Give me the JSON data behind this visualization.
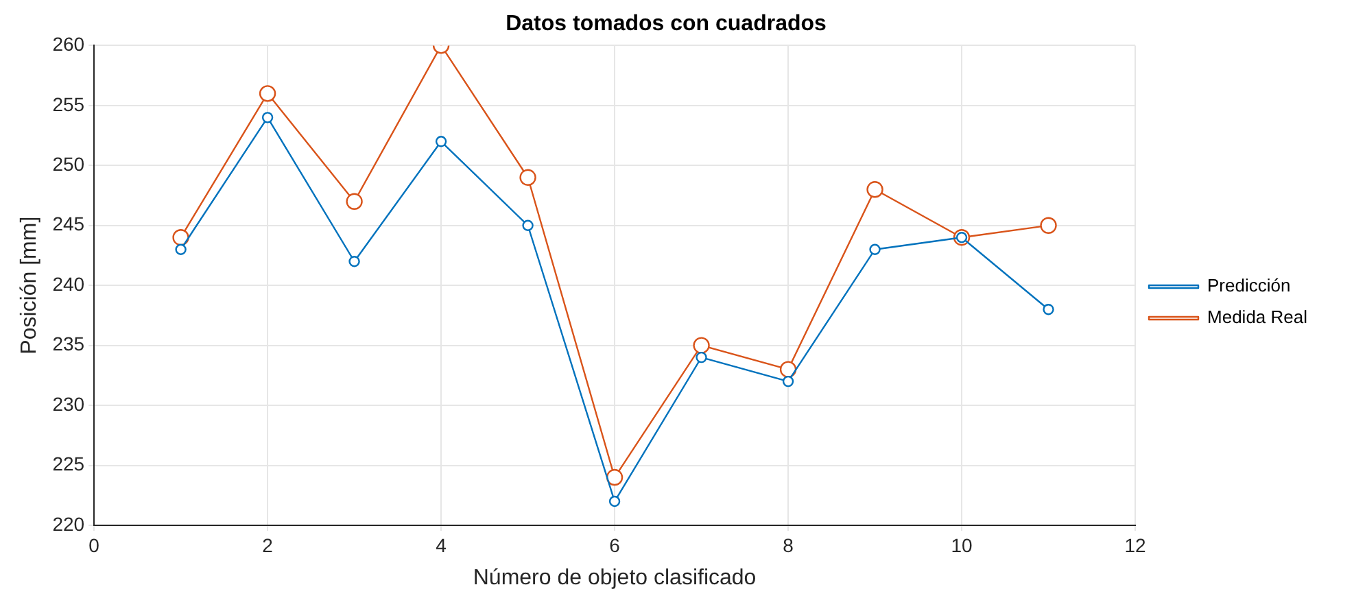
{
  "chart_data": {
    "type": "line",
    "title": "Datos tomados con cuadrados",
    "xlabel": "Número de objeto clasificado",
    "ylabel": "Posición [mm]",
    "x": [
      1,
      2,
      3,
      4,
      5,
      6,
      7,
      8,
      9,
      10,
      11
    ],
    "series": [
      {
        "name": "Predicción",
        "color": "#0072bd",
        "values": [
          243,
          254,
          242,
          252,
          245,
          222,
          234,
          232,
          243,
          244,
          238
        ]
      },
      {
        "name": "Medida Real",
        "color": "#d95319",
        "values": [
          244,
          256,
          247,
          260,
          249,
          224,
          235,
          233,
          248,
          244,
          245
        ]
      }
    ],
    "xlim": [
      0,
      12
    ],
    "xticks": [
      0,
      2,
      4,
      6,
      8,
      10,
      12
    ],
    "ylim": [
      220,
      260
    ],
    "yticks": [
      220,
      225,
      230,
      235,
      240,
      245,
      250,
      255,
      260
    ],
    "grid": true,
    "legend": "right",
    "marker": "circle",
    "line_style": "solid"
  }
}
